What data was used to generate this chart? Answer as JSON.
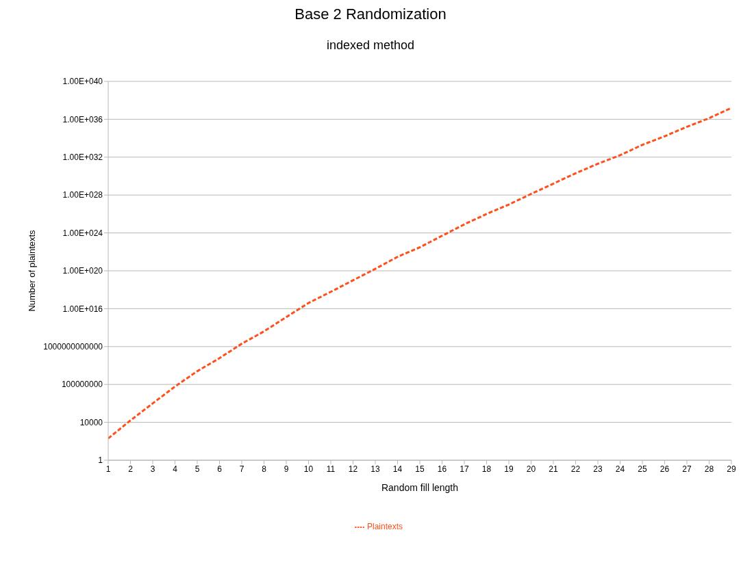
{
  "chart_data": {
    "type": "line",
    "title": "Base 2 Randomization",
    "subtitle": "indexed method",
    "xlabel": "Random fill length",
    "ylabel": "Number of plaintexts",
    "x": [
      1,
      2,
      3,
      4,
      5,
      6,
      7,
      8,
      9,
      10,
      11,
      12,
      13,
      14,
      15,
      16,
      17,
      18,
      19,
      20,
      21,
      22,
      23,
      24,
      25,
      26,
      27,
      28,
      29
    ],
    "series": [
      {
        "name": "Plaintexts",
        "color": "#ff4f1a",
        "values": [
          200,
          16000,
          1000000.0,
          60000000.0,
          2500000000.0,
          60000000000.0,
          2000000000000.0,
          40000000000000.0,
          1300000000000000.0,
          4e+16,
          6e+17,
          1e+19,
          1.6e+20,
          3e+21,
          3e+22,
          5e+23,
          8e+24,
          1e+26,
          1e+27,
          1.3e+28,
          1.6e+29,
          2e+30,
          2e+31,
          1.6e+32,
          2e+33,
          1.6e+34,
          1.6e+35,
          1.3e+36,
          1.6e+37
        ]
      }
    ],
    "xlim": [
      1,
      29
    ],
    "xticks": [
      1,
      2,
      3,
      4,
      5,
      6,
      7,
      8,
      9,
      10,
      11,
      12,
      13,
      14,
      15,
      16,
      17,
      18,
      19,
      20,
      21,
      22,
      23,
      24,
      25,
      26,
      27,
      28,
      29
    ],
    "ylim": [
      1,
      1e+40
    ],
    "yticks": [
      1,
      10000,
      100000000,
      1000000000000,
      {
        "value": 1e+16,
        "label": "1.00E+016"
      },
      {
        "value": 1e+20,
        "label": "1.00E+020"
      },
      {
        "value": 1e+24,
        "label": "1.00E+024"
      },
      {
        "value": 1e+28,
        "label": "1.00E+028"
      },
      {
        "value": 1e+32,
        "label": "1.00E+032"
      },
      {
        "value": 1e+36,
        "label": "1.00E+036"
      },
      {
        "value": 1e+40,
        "label": "1.00E+040"
      }
    ],
    "log": true,
    "grid": "y",
    "legend": "bottom",
    "marker": "none",
    "line_style": "dashed"
  }
}
